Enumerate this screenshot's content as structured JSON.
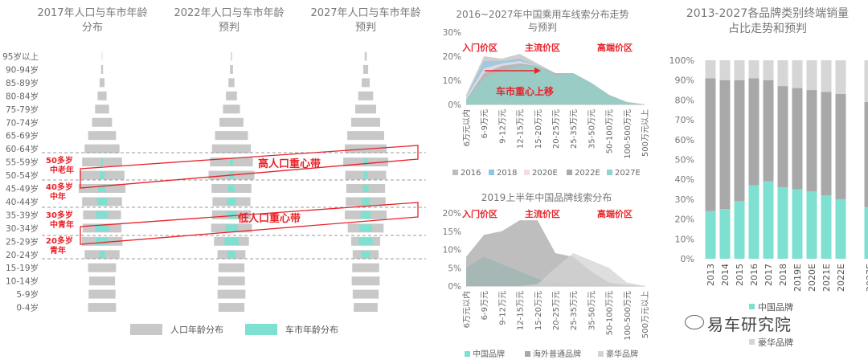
{
  "pyramid": {
    "titles": [
      "2017年人口与车市年龄分布",
      "2022年人口与车市年龄预判",
      "2027年人口与车市年龄预判"
    ],
    "age_groups": [
      "95岁以上",
      "90-94岁",
      "85-89岁",
      "80-84岁",
      "75-79岁",
      "70-74岁",
      "65-69岁",
      "60-64岁",
      "55-59岁",
      "50-54岁",
      "45-49岁",
      "40-44岁",
      "35-39岁",
      "30-34岁",
      "25-29岁",
      "20-24岁",
      "15-19岁",
      "10-14岁",
      "5-9岁",
      "0-4岁"
    ],
    "band_high": "高人口重心带",
    "band_low": "低人口重心带",
    "segment_labels": [
      {
        "line1": "50多岁",
        "line2": "中老年"
      },
      {
        "line1": "40多岁",
        "line2": "中年"
      },
      {
        "line1": "30多岁",
        "line2": "中青年"
      },
      {
        "line1": "20多岁",
        "line2": "青年"
      }
    ],
    "legend": [
      "人口年龄分布",
      "车市年龄分布"
    ],
    "colors": {
      "population": "#c8c8c8",
      "car": "#7ee0d0",
      "red": "#e8232a"
    }
  },
  "chart_data": [
    {
      "type": "bar",
      "title": "2017年人口与车市年龄分布",
      "categories": [
        "95岁以上",
        "90-94岁",
        "85-89岁",
        "80-84岁",
        "75-79岁",
        "70-74岁",
        "65-69岁",
        "60-64岁",
        "55-59岁",
        "50-54岁",
        "45-49岁",
        "40-44岁",
        "35-39岁",
        "30-34岁",
        "25-29岁",
        "20-24岁",
        "15-19岁",
        "10-14岁",
        "5-9岁",
        "0-4岁"
      ],
      "series": [
        {
          "name": "人口年龄分布",
          "values": [
            0.05,
            0.2,
            0.5,
            0.9,
            1.4,
            2.0,
            2.8,
            3.5,
            4.0,
            4.5,
            4.7,
            4.0,
            3.8,
            3.9,
            4.1,
            3.5,
            2.8,
            2.6,
            2.7,
            2.8
          ]
        },
        {
          "name": "车市年龄分布",
          "values": [
            0,
            0,
            0,
            0,
            0,
            0,
            0,
            0,
            0.2,
            0.5,
            0.8,
            1.0,
            1.2,
            1.4,
            1.3,
            0.6,
            0,
            0,
            0,
            0
          ]
        }
      ]
    },
    {
      "type": "bar",
      "title": "2022年人口与车市年龄预判",
      "categories": [
        "95岁以上",
        "90-94岁",
        "85-89岁",
        "80-84岁",
        "75-79岁",
        "70-74岁",
        "65-69岁",
        "60-64岁",
        "55-59岁",
        "50-54岁",
        "45-49岁",
        "40-44岁",
        "35-39岁",
        "30-34岁",
        "25-29岁",
        "20-24岁",
        "15-19岁",
        "10-14岁",
        "5-9岁",
        "0-4岁"
      ],
      "series": [
        {
          "name": "人口年龄分布",
          "values": [
            0.1,
            0.3,
            0.6,
            1.1,
            1.7,
            2.4,
            3.3,
            3.9,
            4.3,
            4.6,
            4.0,
            3.8,
            3.9,
            4.1,
            3.5,
            2.8,
            2.6,
            2.7,
            2.8,
            2.6
          ]
        },
        {
          "name": "车市年龄分布",
          "values": [
            0,
            0,
            0,
            0,
            0,
            0,
            0,
            0,
            0.3,
            0.5,
            0.7,
            0.9,
            1.0,
            1.3,
            1.4,
            0.8,
            0,
            0,
            0,
            0
          ]
        }
      ]
    },
    {
      "type": "bar",
      "title": "2027年人口与车市年龄预判",
      "categories": [
        "95岁以上",
        "90-94岁",
        "85-89岁",
        "80-84岁",
        "75-79岁",
        "70-74岁",
        "65-69岁",
        "60-64岁",
        "55-59岁",
        "50-54岁",
        "45-49岁",
        "40-44岁",
        "35-39岁",
        "30-34岁",
        "25-29岁",
        "20-24岁",
        "15-19岁",
        "10-14岁",
        "5-9岁",
        "0-4岁"
      ],
      "series": [
        {
          "name": "人口年龄分布",
          "values": [
            0.2,
            0.5,
            0.8,
            1.5,
            2.1,
            2.9,
            3.7,
            4.2,
            4.5,
            4.1,
            3.9,
            4.0,
            4.2,
            3.6,
            2.9,
            2.6,
            2.7,
            2.8,
            2.6,
            2.4
          ]
        },
        {
          "name": "车市年龄分布",
          "values": [
            0,
            0,
            0,
            0,
            0,
            0,
            0,
            0,
            0.3,
            0.4,
            0.6,
            0.8,
            1.0,
            1.3,
            1.4,
            0.9,
            0,
            0,
            0,
            0
          ]
        }
      ]
    },
    {
      "type": "area",
      "title": "2016~2027年中国乘用车线索分布走势与预判",
      "categories": [
        "6万元以内",
        "6-9万元",
        "9-12万元",
        "12-15万元",
        "15-20万元",
        "20-25万元",
        "25-35万元",
        "35-50万元",
        "50-100万元",
        "100-500万元",
        "500万元以上"
      ],
      "ylim": [
        0,
        30
      ],
      "yticks": [
        "0%",
        "10%",
        "20%",
        "30%"
      ],
      "series": [
        {
          "name": "2016",
          "values": [
            4,
            20,
            19,
            21,
            17,
            13,
            13,
            9,
            4,
            1,
            0
          ]
        },
        {
          "name": "2018",
          "values": [
            3,
            18,
            18,
            19,
            16,
            13,
            13,
            9,
            4,
            1,
            0
          ]
        },
        {
          "name": "2020E",
          "values": [
            3,
            15,
            17,
            18,
            16,
            13,
            13,
            9,
            4,
            1,
            0
          ]
        },
        {
          "name": "2022E",
          "values": [
            2,
            13,
            16,
            17,
            16,
            13,
            13,
            9,
            4,
            1,
            0
          ]
        },
        {
          "name": "2027E",
          "values": [
            2,
            11,
            14,
            16,
            16,
            12,
            13,
            9,
            4,
            1,
            0
          ]
        }
      ],
      "colors": [
        "#bdbdbd",
        "#8ec7e6",
        "#f3dde4",
        "#a9a9a9",
        "#8fd3c9"
      ],
      "annotations": [
        "入门价区",
        "主流价区",
        "高端价区",
        "车市重心上移"
      ]
    },
    {
      "type": "area",
      "title": "2019上半年中国品牌线索分布",
      "categories": [
        "6万元以内",
        "6-9万元",
        "9-12万元",
        "12-15万元",
        "15-20万元",
        "20-25万元",
        "25-35万元",
        "35-50万元",
        "50-100万元",
        "100-500万元",
        "500万元以上"
      ],
      "ylim": [
        0,
        20
      ],
      "yticks": [
        "0%",
        "5%",
        "10%",
        "15%",
        "20%"
      ],
      "series": [
        {
          "name": "中国品牌",
          "values": [
            5,
            8,
            6,
            4,
            2,
            1,
            0.5,
            0.3,
            0.1,
            0,
            0
          ]
        },
        {
          "name": "海外普通品牌",
          "values": [
            8,
            14,
            15,
            18,
            18,
            9,
            8,
            4,
            1,
            0.3,
            0
          ]
        },
        {
          "name": "豪华品牌",
          "values": [
            0,
            0,
            0,
            0,
            0.5,
            5,
            9,
            7,
            5,
            1,
            0
          ]
        }
      ],
      "colors": [
        "#7ee0d0",
        "#a8a8a8",
        "#d3d3d3"
      ],
      "annotations": [
        "入门价区",
        "主流价区",
        "高端价区"
      ]
    },
    {
      "type": "bar",
      "title": "2013-2027各品牌类别终端销量占比走势和预判",
      "categories": [
        "2013",
        "2014",
        "2015",
        "2016",
        "2017",
        "2018",
        "2019E",
        "2020E",
        "2021E",
        "2022E",
        "2027E"
      ],
      "ylim": [
        0,
        100
      ],
      "yticks": [
        "0%",
        "10%",
        "20%",
        "30%",
        "40%",
        "50%",
        "60%",
        "70%",
        "80%",
        "90%",
        "100%"
      ],
      "series": [
        {
          "name": "中国品牌",
          "values": [
            24,
            25,
            29,
            37,
            39,
            36,
            35,
            34,
            32,
            30,
            26
          ]
        },
        {
          "name": "海外普通品牌",
          "values": [
            67,
            65,
            61,
            54,
            51,
            51,
            51,
            51,
            52,
            53,
            53
          ]
        },
        {
          "name": "豪华品牌",
          "values": [
            9,
            10,
            10,
            9,
            10,
            13,
            14,
            15,
            16,
            17,
            21
          ]
        }
      ],
      "legend_shown": [
        "中国品牌",
        "豪华品牌"
      ],
      "colors": [
        "#7ee0d0",
        "#a8a8a8",
        "#d6d6d6"
      ]
    }
  ],
  "watermark": "易车研究院"
}
